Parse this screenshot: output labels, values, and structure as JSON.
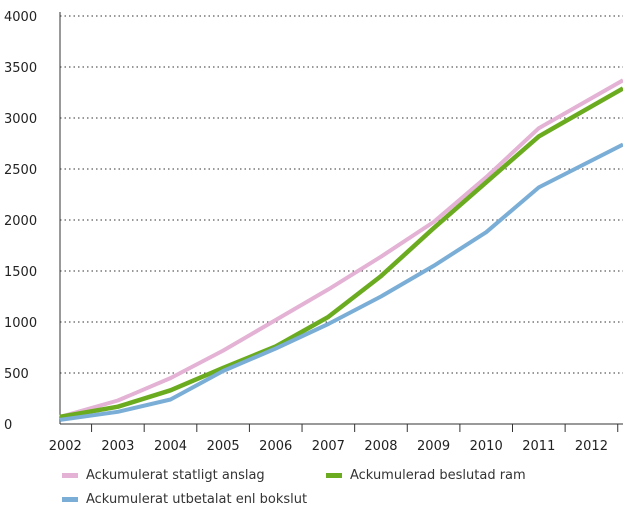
{
  "chart_data": {
    "type": "line",
    "title": "",
    "xlabel": "",
    "ylabel": "",
    "categories": [
      "2002",
      "2003",
      "2004",
      "2005",
      "2006",
      "2007",
      "2008",
      "2009",
      "2010",
      "2011",
      "2012"
    ],
    "y_ticks": [
      "0",
      "500",
      "1000",
      "1500",
      "2000",
      "2500",
      "3000",
      "3500",
      "4000"
    ],
    "ylim": [
      0,
      4000
    ],
    "grid": "horizontal dotted",
    "legend_position": "bottom",
    "series": [
      {
        "name": "Ackumulerat statligt anslag",
        "color": "#e3b2d4",
        "x": [
          2001.9,
          2003,
          2004,
          2005,
          2006,
          2007,
          2008,
          2009,
          2010,
          2011,
          2012.6
        ],
        "values": [
          70,
          230,
          450,
          720,
          1020,
          1320,
          1640,
          1980,
          2420,
          2900,
          3370
        ]
      },
      {
        "name": "Ackumulerad beslutad ram",
        "color": "#6bab1f",
        "x": [
          2001.9,
          2003,
          2004,
          2005,
          2006,
          2007,
          2008,
          2009,
          2010,
          2011,
          2012.6
        ],
        "values": [
          70,
          170,
          330,
          550,
          760,
          1050,
          1450,
          1920,
          2370,
          2820,
          3290
        ]
      },
      {
        "name": "Ackumulerat utbetalat enl bokslut",
        "color": "#7aaed6",
        "x": [
          2001.9,
          2003,
          2004,
          2005,
          2006,
          2007,
          2008,
          2009,
          2010,
          2011,
          2012.6
        ],
        "values": [
          40,
          120,
          240,
          520,
          740,
          980,
          1250,
          1550,
          1880,
          2320,
          2740
        ]
      }
    ]
  }
}
